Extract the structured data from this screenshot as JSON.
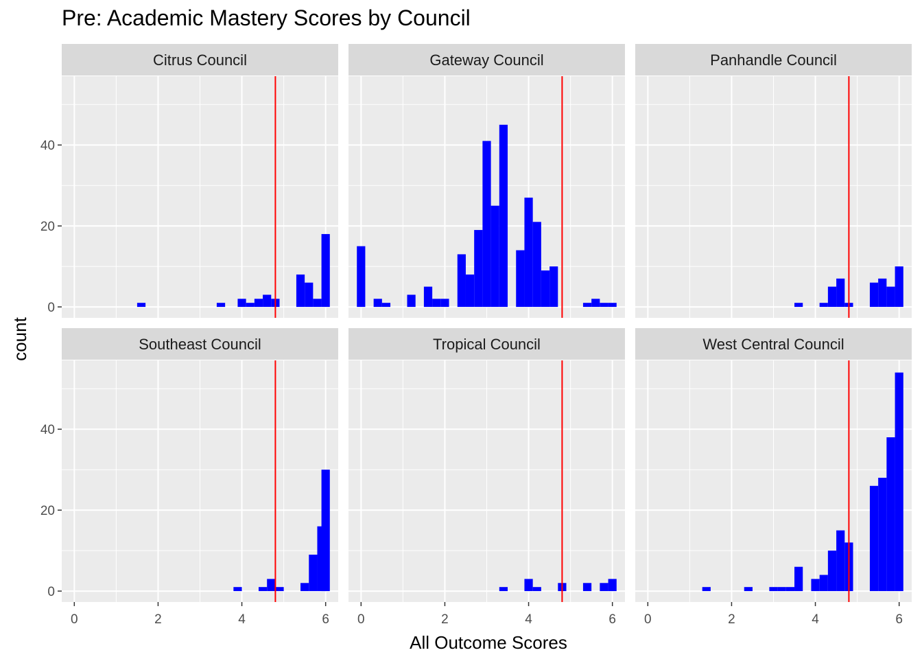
{
  "chart_data": {
    "type": "histogram",
    "title": "Pre: Academic Mastery Scores by Council",
    "xlabel": "All Outcome Scores",
    "ylabel": "count",
    "xlim": [
      -0.3,
      6.3
    ],
    "ylim": [
      -2.7,
      57
    ],
    "x_ticks": [
      0,
      2,
      4,
      6
    ],
    "y_ticks": [
      0,
      20,
      40
    ],
    "bin_width": 0.2,
    "reference_line": {
      "x": 4.8,
      "color": "#ff0000"
    },
    "colors": {
      "bars": "#0000ff",
      "panel_bg": "#ebebeb",
      "strip_bg": "#d9d9d9",
      "grid": "#ffffff"
    },
    "grid": true,
    "legend": "none",
    "panels": [
      {
        "name": "Citrus Council",
        "bins": [
          {
            "x": 1.6,
            "count": 1
          },
          {
            "x": 3.5,
            "count": 1
          },
          {
            "x": 4.0,
            "count": 2
          },
          {
            "x": 4.2,
            "count": 1
          },
          {
            "x": 4.4,
            "count": 2
          },
          {
            "x": 4.6,
            "count": 3
          },
          {
            "x": 4.8,
            "count": 2
          },
          {
            "x": 5.4,
            "count": 8
          },
          {
            "x": 5.6,
            "count": 6
          },
          {
            "x": 5.8,
            "count": 2
          },
          {
            "x": 6.0,
            "count": 18
          }
        ]
      },
      {
        "name": "Gateway Council",
        "bins": [
          {
            "x": 0.0,
            "count": 15
          },
          {
            "x": 0.4,
            "count": 2
          },
          {
            "x": 0.6,
            "count": 1
          },
          {
            "x": 1.2,
            "count": 3
          },
          {
            "x": 1.6,
            "count": 5
          },
          {
            "x": 1.8,
            "count": 2
          },
          {
            "x": 2.0,
            "count": 2
          },
          {
            "x": 2.4,
            "count": 13
          },
          {
            "x": 2.6,
            "count": 8
          },
          {
            "x": 2.8,
            "count": 19
          },
          {
            "x": 3.0,
            "count": 41
          },
          {
            "x": 3.2,
            "count": 25
          },
          {
            "x": 3.4,
            "count": 45
          },
          {
            "x": 3.8,
            "count": 14
          },
          {
            "x": 4.0,
            "count": 27
          },
          {
            "x": 4.2,
            "count": 21
          },
          {
            "x": 4.4,
            "count": 9
          },
          {
            "x": 4.6,
            "count": 10
          },
          {
            "x": 5.4,
            "count": 1
          },
          {
            "x": 5.6,
            "count": 2
          },
          {
            "x": 5.8,
            "count": 1
          },
          {
            "x": 6.0,
            "count": 1
          }
        ]
      },
      {
        "name": "Panhandle Council",
        "bins": [
          {
            "x": 3.6,
            "count": 1
          },
          {
            "x": 4.2,
            "count": 1
          },
          {
            "x": 4.4,
            "count": 5
          },
          {
            "x": 4.6,
            "count": 7
          },
          {
            "x": 4.8,
            "count": 1
          },
          {
            "x": 5.4,
            "count": 6
          },
          {
            "x": 5.6,
            "count": 7
          },
          {
            "x": 5.8,
            "count": 5
          },
          {
            "x": 6.0,
            "count": 10
          }
        ]
      },
      {
        "name": "Southeast Council",
        "bins": [
          {
            "x": 3.9,
            "count": 1
          },
          {
            "x": 4.5,
            "count": 1
          },
          {
            "x": 4.7,
            "count": 3
          },
          {
            "x": 4.9,
            "count": 1
          },
          {
            "x": 5.5,
            "count": 2
          },
          {
            "x": 5.7,
            "count": 9
          },
          {
            "x": 5.9,
            "count": 16
          },
          {
            "x": 6.0,
            "count": 30
          }
        ]
      },
      {
        "name": "Tropical Council",
        "bins": [
          {
            "x": 3.4,
            "count": 1
          },
          {
            "x": 4.0,
            "count": 3
          },
          {
            "x": 4.2,
            "count": 1
          },
          {
            "x": 4.8,
            "count": 2
          },
          {
            "x": 5.4,
            "count": 2
          },
          {
            "x": 5.8,
            "count": 2
          },
          {
            "x": 6.0,
            "count": 3
          }
        ]
      },
      {
        "name": "West Central Council",
        "bins": [
          {
            "x": 1.4,
            "count": 1
          },
          {
            "x": 2.4,
            "count": 1
          },
          {
            "x": 3.0,
            "count": 1
          },
          {
            "x": 3.2,
            "count": 1
          },
          {
            "x": 3.4,
            "count": 1
          },
          {
            "x": 3.6,
            "count": 6
          },
          {
            "x": 4.0,
            "count": 3
          },
          {
            "x": 4.2,
            "count": 4
          },
          {
            "x": 4.4,
            "count": 10
          },
          {
            "x": 4.6,
            "count": 15
          },
          {
            "x": 4.8,
            "count": 12
          },
          {
            "x": 5.4,
            "count": 26
          },
          {
            "x": 5.6,
            "count": 28
          },
          {
            "x": 5.8,
            "count": 38
          },
          {
            "x": 6.0,
            "count": 54
          }
        ]
      }
    ]
  }
}
